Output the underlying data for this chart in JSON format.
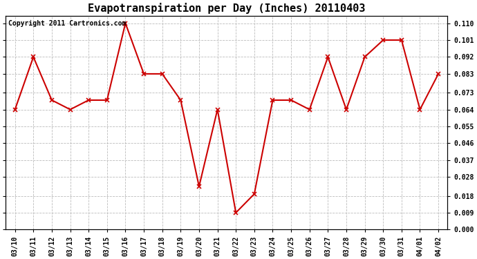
{
  "title": "Evapotranspiration per Day (Inches) 20110403",
  "copyright_text": "Copyright 2011 Cartronics.com",
  "dates": [
    "03/10",
    "03/11",
    "03/12",
    "03/13",
    "03/14",
    "03/15",
    "03/16",
    "03/17",
    "03/18",
    "03/19",
    "03/20",
    "03/21",
    "03/22",
    "03/23",
    "03/24",
    "03/25",
    "03/26",
    "03/27",
    "03/28",
    "03/29",
    "03/30",
    "03/31",
    "04/01",
    "04/02"
  ],
  "values": [
    0.064,
    0.092,
    0.069,
    0.064,
    0.069,
    0.069,
    0.11,
    0.083,
    0.083,
    0.069,
    0.023,
    0.064,
    0.009,
    0.019,
    0.069,
    0.069,
    0.064,
    0.092,
    0.064,
    0.092,
    0.101,
    0.101,
    0.064,
    0.083
  ],
  "line_color": "#cc0000",
  "marker": "x",
  "marker_color": "#cc0000",
  "bg_color": "#ffffff",
  "plot_bg_color": "#ffffff",
  "grid_color": "#bbbbbb",
  "ylim_min": 0.0,
  "ylim_max": 0.114,
  "yticks": [
    0.0,
    0.009,
    0.018,
    0.028,
    0.037,
    0.046,
    0.055,
    0.064,
    0.073,
    0.083,
    0.092,
    0.101,
    0.11
  ],
  "title_fontsize": 11,
  "copyright_fontsize": 7,
  "tick_fontsize": 7,
  "line_width": 1.5,
  "marker_size": 4
}
